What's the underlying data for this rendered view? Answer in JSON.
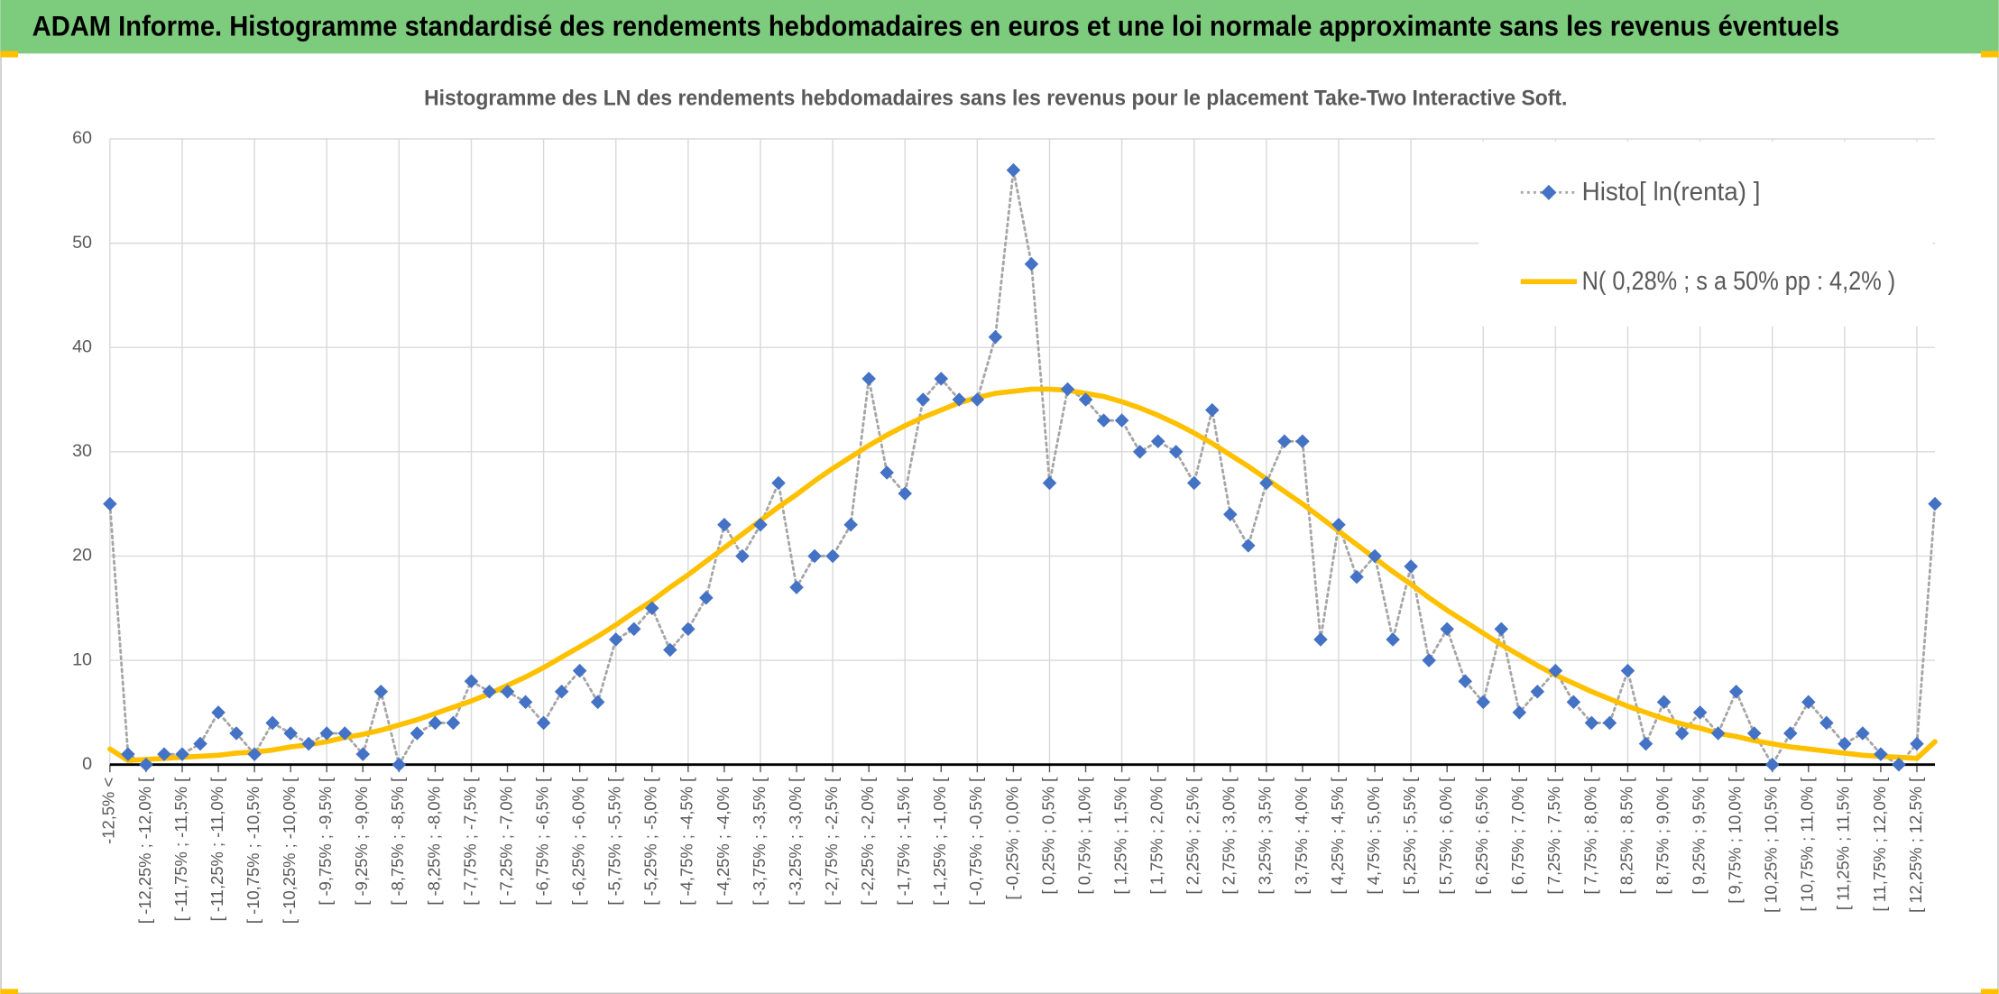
{
  "header": {
    "title": "ADAM Informe. Histogramme standardisé des rendements hebdomadaires en euros et une loi normale approximante sans les revenus éventuels"
  },
  "chart_data": {
    "type": "line",
    "title": "Histogramme des LN des rendements hebdomadaires sans les revenus pour le placement Take-Two Interactive Soft.",
    "categories": [
      "-12,5% <",
      null,
      "[ -12,25% ; -12,0% [",
      null,
      "[ -11,75% ; -11,5% [",
      null,
      "[ -11,25% ; -11,0% [",
      null,
      "[ -10,75% ; -10,5% [",
      null,
      "[ -10,25% ; -10,0% [",
      null,
      "[ -9,75% ; -9,5% [",
      null,
      "[ -9,25% ; -9,0% [",
      null,
      "[ -8,75% ; -8,5% [",
      null,
      "[ -8,25% ; -8,0% [",
      null,
      "[ -7,75% ; -7,5% [",
      null,
      "[ -7,25% ; -7,0% [",
      null,
      "[ -6,75% ; -6,5% [",
      null,
      "[ -6,25% ; -6,0% [",
      null,
      "[ -5,75% ; -5,5% [",
      null,
      "[ -5,25% ; -5,0% [",
      null,
      "[ -4,75% ; -4,5% [",
      null,
      "[ -4,25% ; -4,0% [",
      null,
      "[ -3,75% ; -3,5% [",
      null,
      "[ -3,25% ; -3,0% [",
      null,
      "[ -2,75% ; -2,5% [",
      null,
      "[ -2,25% ; -2,0% [",
      null,
      "[ -1,75% ; -1,5% [",
      null,
      "[ -1,25% ; -1,0% [",
      null,
      "[ -0,75% ; -0,5% [",
      null,
      "[ -0,25% ; 0,0% [",
      null,
      "[ 0,25% ; 0,5% [",
      null,
      "[ 0,75% ; 1,0% [",
      null,
      "[ 1,25% ; 1,5% [",
      null,
      "[ 1,75% ; 2,0% [",
      null,
      "[ 2,25% ; 2,5% [",
      null,
      "[ 2,75% ; 3,0% [",
      null,
      "[ 3,25% ; 3,5% [",
      null,
      "[ 3,75% ; 4,0% [",
      null,
      "[ 4,25% ; 4,5% [",
      null,
      "[ 4,75% ; 5,0% [",
      null,
      "[ 5,25% ; 5,5% [",
      null,
      "[ 5,75% ; 6,0% [",
      null,
      "[ 6,25% ; 6,5% [",
      null,
      "[ 6,75% ; 7,0% [",
      null,
      "[ 7,25% ; 7,5% [",
      null,
      "[ 7,75% ; 8,0% [",
      null,
      "[ 8,25% ; 8,5% [",
      null,
      "[ 8,75% ; 9,0% [",
      null,
      "[ 9,25% ; 9,5% [",
      null,
      "[ 9,75% ; 10,0% [",
      null,
      "[ 10,25% ; 10,5% [",
      null,
      "[ 10,75% ; 11,0% [",
      null,
      "[ 11,25% ; 11,5% [",
      null,
      "[ 11,75% ; 12,0% [",
      null,
      "[ 12,25% ; 12,5% [",
      null
    ],
    "series": [
      {
        "name": "Histo[ ln(renta) ]",
        "color": "#4472c4",
        "line_color": "#a6a6a6",
        "values": [
          25,
          1,
          0,
          1,
          1,
          2,
          5,
          3,
          1,
          4,
          3,
          2,
          3,
          3,
          1,
          7,
          0,
          3,
          4,
          4,
          8,
          7,
          7,
          6,
          4,
          7,
          9,
          6,
          12,
          13,
          15,
          11,
          13,
          16,
          23,
          20,
          23,
          27,
          17,
          20,
          20,
          23,
          37,
          28,
          26,
          35,
          37,
          35,
          35,
          41,
          57,
          48,
          27,
          36,
          35,
          33,
          33,
          30,
          31,
          30,
          27,
          34,
          24,
          21,
          27,
          31,
          31,
          12,
          23,
          18,
          20,
          12,
          19,
          10,
          13,
          8,
          6,
          13,
          5,
          7,
          9,
          6,
          4,
          4,
          9,
          2,
          6,
          3,
          5,
          3,
          7,
          3,
          0,
          3,
          6,
          4,
          2,
          3,
          1,
          0,
          2,
          25
        ]
      },
      {
        "name": "N( 0,28% ; s a 50% pp : 4,2% )",
        "color": "#ffc000",
        "values": [
          1.5,
          0.4,
          0.5,
          0.6,
          0.7,
          0.8,
          0.9,
          1.1,
          1.2,
          1.4,
          1.7,
          1.9,
          2.2,
          2.6,
          2.9,
          3.3,
          3.8,
          4.3,
          4.9,
          5.5,
          6.1,
          6.8,
          7.6,
          8.4,
          9.3,
          10.3,
          11.3,
          12.3,
          13.4,
          14.6,
          15.7,
          17.0,
          18.2,
          19.5,
          20.8,
          22.1,
          23.4,
          24.7,
          25.9,
          27.2,
          28.4,
          29.5,
          30.6,
          31.6,
          32.5,
          33.3,
          34.0,
          34.7,
          35.2,
          35.6,
          35.8,
          36.0,
          36.0,
          35.9,
          35.6,
          35.3,
          34.8,
          34.2,
          33.5,
          32.7,
          31.8,
          30.8,
          29.7,
          28.6,
          27.4,
          26.2,
          25.0,
          23.7,
          22.4,
          21.1,
          19.8,
          18.5,
          17.3,
          16.0,
          14.8,
          13.7,
          12.6,
          11.5,
          10.5,
          9.5,
          8.6,
          7.8,
          7.0,
          6.3,
          5.6,
          5.0,
          4.4,
          3.9,
          3.5,
          3.0,
          2.7,
          2.3,
          2.0,
          1.7,
          1.5,
          1.3,
          1.1,
          0.9,
          0.8,
          0.7,
          0.6,
          2.2
        ]
      }
    ],
    "ylim": [
      0,
      60
    ],
    "yticks": [
      0,
      10,
      20,
      30,
      40,
      50,
      60
    ],
    "grid": true,
    "legend": "top-right"
  }
}
